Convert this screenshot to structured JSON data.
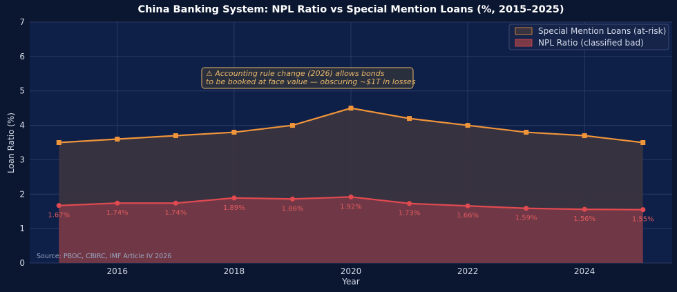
{
  "chart_data": {
    "type": "area",
    "title": "China Banking System: NPL Ratio vs Special Mention Loans (%, 2015–2025)",
    "xlabel": "Year",
    "ylabel": "Loan Ratio (%)",
    "xlim": [
      2014.5,
      2025.5
    ],
    "ylim": [
      0,
      7
    ],
    "x_ticks": [
      2016,
      2018,
      2020,
      2022,
      2024
    ],
    "y_ticks": [
      0,
      1,
      2,
      3,
      4,
      5,
      6,
      7
    ],
    "grid": true,
    "legend_position": "top-right",
    "x": [
      2015,
      2016,
      2017,
      2018,
      2019,
      2020,
      2021,
      2022,
      2023,
      2024,
      2025
    ],
    "series": [
      {
        "name": "Special Mention Loans (at-risk)",
        "color": "#f0953a",
        "fill": "#3a3440",
        "marker": "square",
        "values": [
          3.5,
          3.6,
          3.7,
          3.8,
          4.0,
          4.5,
          4.2,
          4.0,
          3.8,
          3.7,
          3.5
        ]
      },
      {
        "name": "NPL Ratio (classified bad)",
        "color": "#e04a50",
        "fill": "#7a3a48",
        "marker": "circle",
        "values": [
          1.67,
          1.74,
          1.74,
          1.89,
          1.86,
          1.92,
          1.73,
          1.66,
          1.59,
          1.56,
          1.55
        ],
        "data_labels": [
          "1.67%",
          "1.74%",
          "1.74%",
          "1.89%",
          "1.86%",
          "1.92%",
          "1.73%",
          "1.66%",
          "1.59%",
          "1.56%",
          "1.55%"
        ]
      }
    ],
    "annotation": {
      "line1": "⚠  Accounting rule change (2026) allows bonds",
      "line2": "to be booked at face value — obscuring ~$1T in losses"
    },
    "source": "Source: PBOC, CBIRC, IMF Article IV 2026"
  }
}
